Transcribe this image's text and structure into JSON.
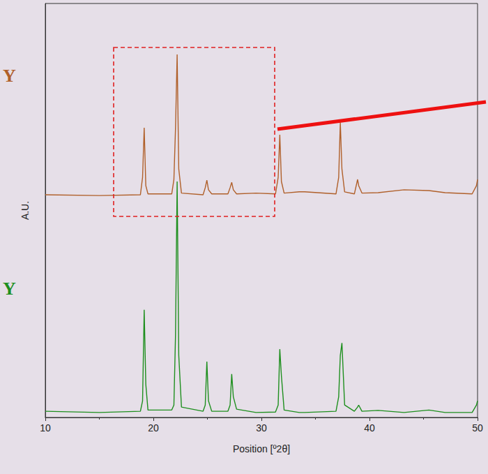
{
  "chart_data": {
    "type": "line",
    "x_label": "Position [º2θ]",
    "y_label": "A.U.",
    "xlim": [
      10,
      50
    ],
    "xticks": [
      10,
      20,
      30,
      40,
      50
    ],
    "ylim": [
      0,
      100
    ],
    "tick_labels": "x",
    "grid": false,
    "x": [
      10,
      15,
      18.8,
      19.0,
      19.15,
      19.3,
      19.5,
      21.7,
      21.9,
      22.05,
      22.2,
      22.35,
      22.6,
      24.6,
      24.8,
      24.95,
      25.1,
      25.4,
      26.9,
      27.1,
      27.25,
      27.4,
      27.7,
      29.5,
      31.3,
      31.55,
      31.7,
      31.85,
      32.1,
      33.5,
      34,
      36.9,
      37.15,
      37.3,
      37.45,
      37.7,
      38.6,
      38.9,
      39.0,
      39.3,
      40.8,
      43.2,
      45.5,
      47,
      49.5,
      49.9,
      50
    ],
    "series": [
      {
        "name": "Y",
        "color": "#b0602a",
        "values": [
          53.8,
          53.6,
          53.8,
          58,
          70,
          56,
          54,
          54,
          57.5,
          70,
          87.7,
          60,
          54.2,
          53.8,
          55.5,
          57.3,
          55,
          54,
          54,
          55.5,
          56.8,
          55,
          54,
          54.2,
          54,
          58,
          68.3,
          57,
          54.2,
          54.5,
          54.5,
          54,
          58,
          71.3,
          60,
          54.5,
          54,
          57.5,
          56,
          54.2,
          54.3,
          55,
          54.8,
          54.3,
          54,
          56,
          57.5
        ]
      },
      {
        "name": "Y",
        "color": "#1e8f1e",
        "values": [
          1.5,
          1.2,
          1.5,
          4,
          26,
          8,
          1.8,
          1.8,
          3,
          20,
          57,
          15,
          2.5,
          1.5,
          3,
          13.5,
          4,
          1.5,
          1.5,
          3,
          10.5,
          5,
          2,
          1.2,
          1.3,
          3,
          16.5,
          10,
          1.8,
          1.2,
          1.2,
          1.5,
          5,
          15,
          18,
          3,
          1.5,
          2.5,
          3,
          1.5,
          1.7,
          1.2,
          1.8,
          1.2,
          1.2,
          3,
          4
        ]
      }
    ]
  }
}
